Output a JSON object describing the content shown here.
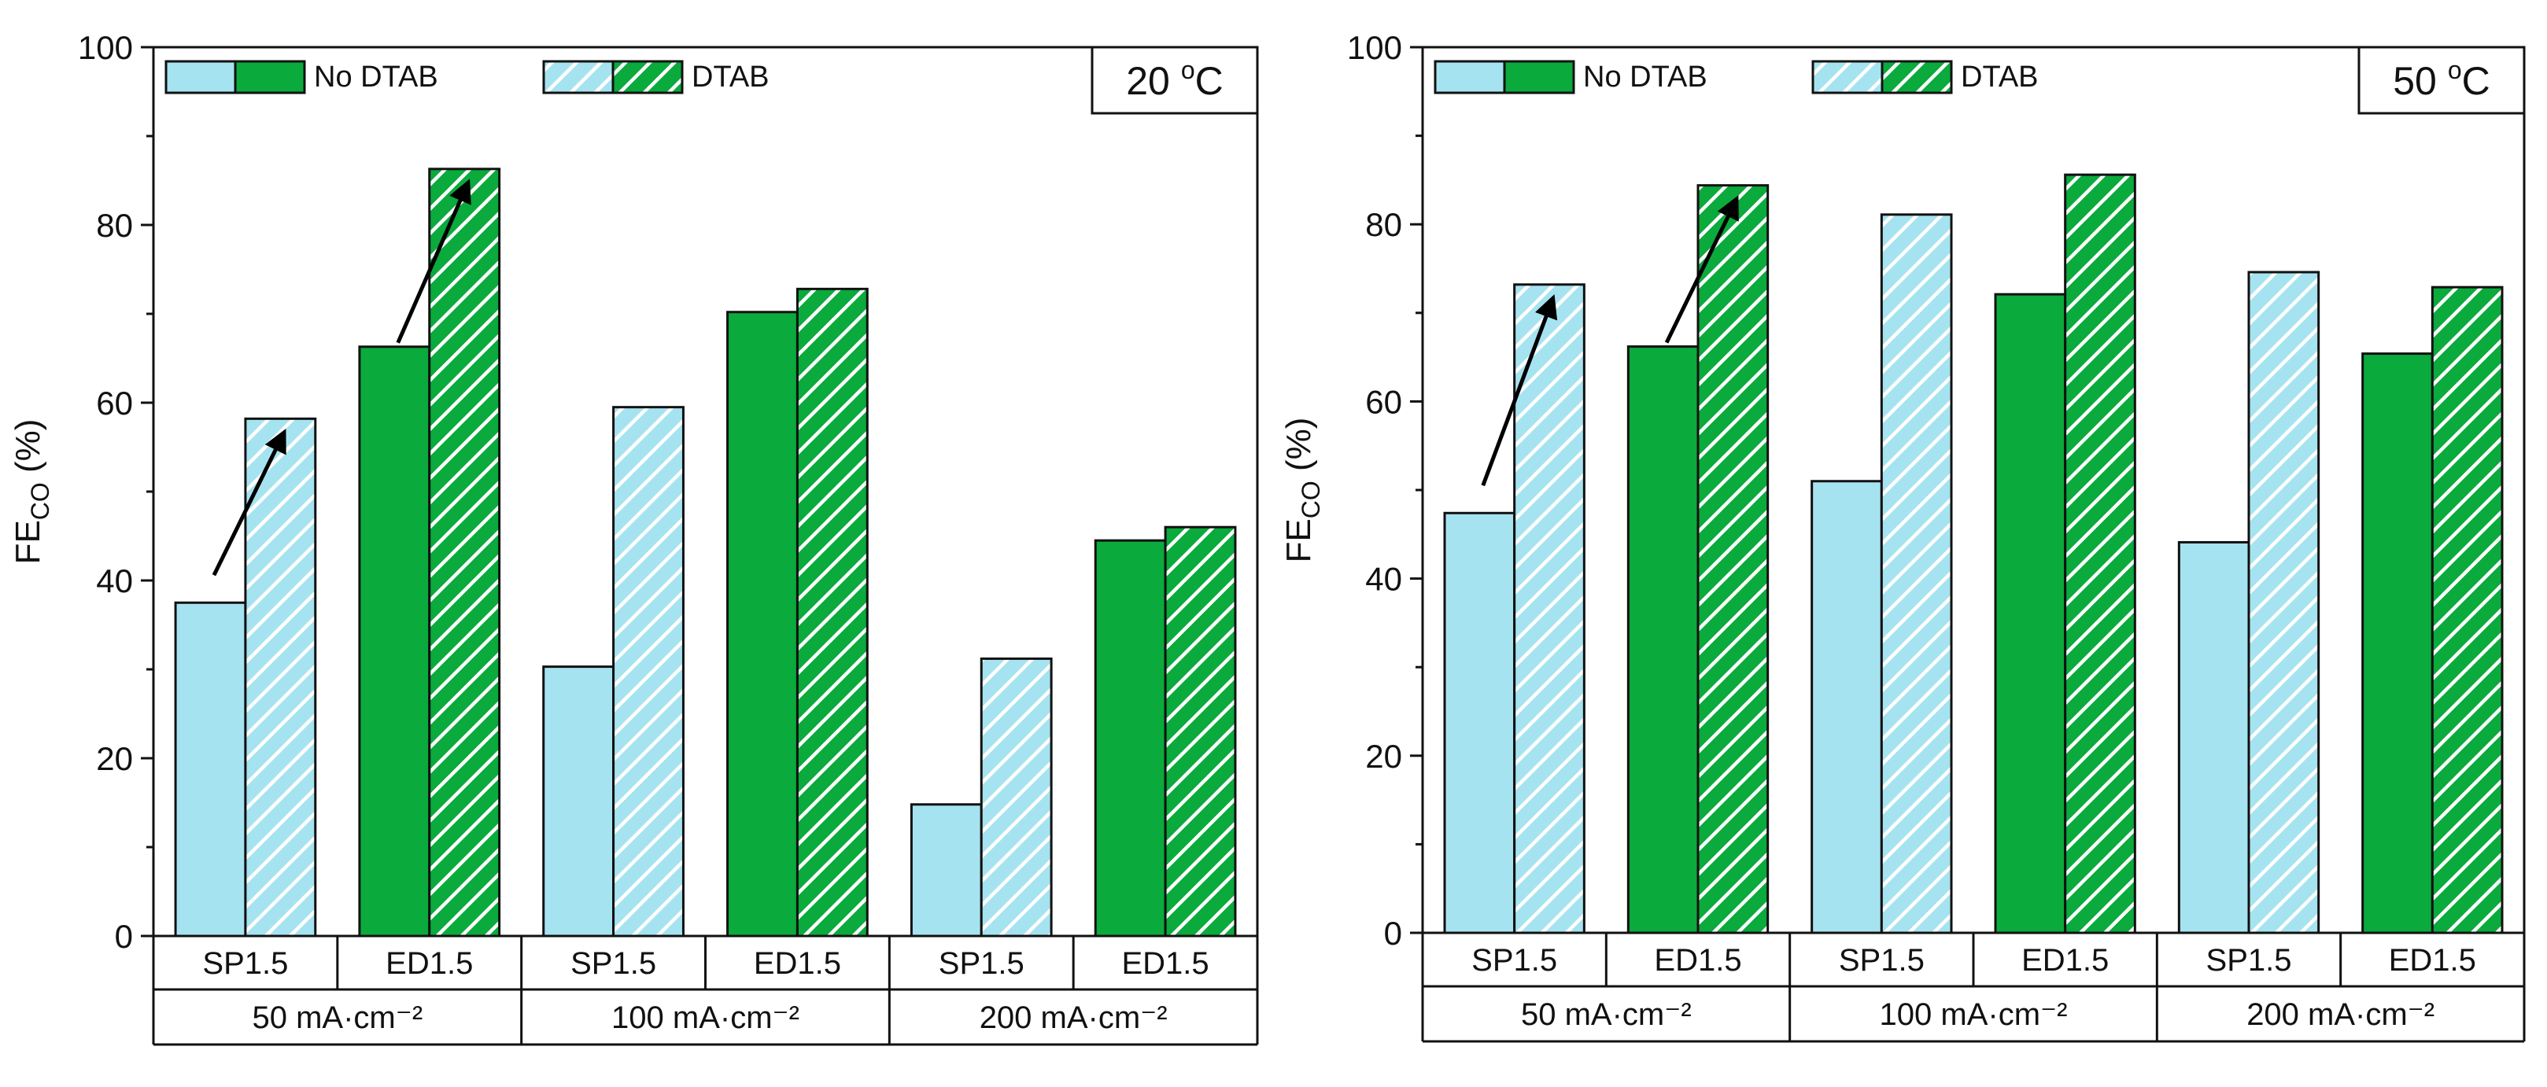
{
  "chart_data": [
    {
      "type": "bar",
      "panel": "left",
      "temperature": {
        "value": "20",
        "degree": "o",
        "unit": "C"
      },
      "ylabel": {
        "main": "FE",
        "sub": "CO",
        "suffix": " (%)"
      },
      "ylim": [
        0,
        100
      ],
      "yticks": [
        "0",
        "20",
        "40",
        "60",
        "80",
        "100"
      ],
      "legend": {
        "items": [
          {
            "label": "No DTAB",
            "hatched": false
          },
          {
            "label": "DTAB",
            "hatched": true
          }
        ],
        "placement": "top-left"
      },
      "groups": [
        {
          "label": "50 mA·cm⁻²",
          "categories": [
            {
              "label": "SP1.5",
              "material": "SP",
              "no_dtab": 37.5,
              "dtab": 58.2,
              "arrow": true
            },
            {
              "label": "ED1.5",
              "material": "ED",
              "no_dtab": 66.3,
              "dtab": 86.3,
              "arrow": true
            }
          ]
        },
        {
          "label": "100 mA·cm⁻²",
          "categories": [
            {
              "label": "SP1.5",
              "material": "SP",
              "no_dtab": 30.3,
              "dtab": 59.5,
              "arrow": false
            },
            {
              "label": "ED1.5",
              "material": "ED",
              "no_dtab": 70.2,
              "dtab": 72.8,
              "arrow": false
            }
          ]
        },
        {
          "label": "200 mA·cm⁻²",
          "categories": [
            {
              "label": "SP1.5",
              "material": "SP",
              "no_dtab": 14.8,
              "dtab": 31.2,
              "arrow": false
            },
            {
              "label": "ED1.5",
              "material": "ED",
              "no_dtab": 44.5,
              "dtab": 46.0,
              "arrow": false
            }
          ]
        }
      ]
    },
    {
      "type": "bar",
      "panel": "right",
      "temperature": {
        "value": "50",
        "degree": "o",
        "unit": "C"
      },
      "ylabel": {
        "main": "FE",
        "sub": "CO",
        "suffix": " (%)"
      },
      "ylim": [
        0,
        100
      ],
      "yticks": [
        "0",
        "20",
        "40",
        "60",
        "80",
        "100"
      ],
      "legend": {
        "items": [
          {
            "label": "No DTAB",
            "hatched": false
          },
          {
            "label": "DTAB",
            "hatched": true
          }
        ],
        "placement": "top-left"
      },
      "groups": [
        {
          "label": "50 mA·cm⁻²",
          "categories": [
            {
              "label": "SP1.5",
              "material": "SP",
              "no_dtab": 47.4,
              "dtab": 73.2,
              "arrow": true
            },
            {
              "label": "ED1.5",
              "material": "ED",
              "no_dtab": 66.2,
              "dtab": 84.4,
              "arrow": true
            }
          ]
        },
        {
          "label": "100 mA·cm⁻²",
          "categories": [
            {
              "label": "SP1.5",
              "material": "SP",
              "no_dtab": 51.0,
              "dtab": 81.1,
              "arrow": false
            },
            {
              "label": "ED1.5",
              "material": "ED",
              "no_dtab": 72.1,
              "dtab": 85.6,
              "arrow": false
            }
          ]
        },
        {
          "label": "200 mA·cm⁻²",
          "categories": [
            {
              "label": "SP1.5",
              "material": "SP",
              "no_dtab": 44.1,
              "dtab": 74.6,
              "arrow": false
            },
            {
              "label": "ED1.5",
              "material": "ED",
              "no_dtab": 65.4,
              "dtab": 72.9,
              "arrow": false
            }
          ]
        }
      ]
    }
  ],
  "colors": {
    "SP": "#a6e3f0",
    "ED": "#0aaa3c",
    "hatch_stroke": "#ffffff",
    "outline": "#111111",
    "arrow": "#000000"
  }
}
